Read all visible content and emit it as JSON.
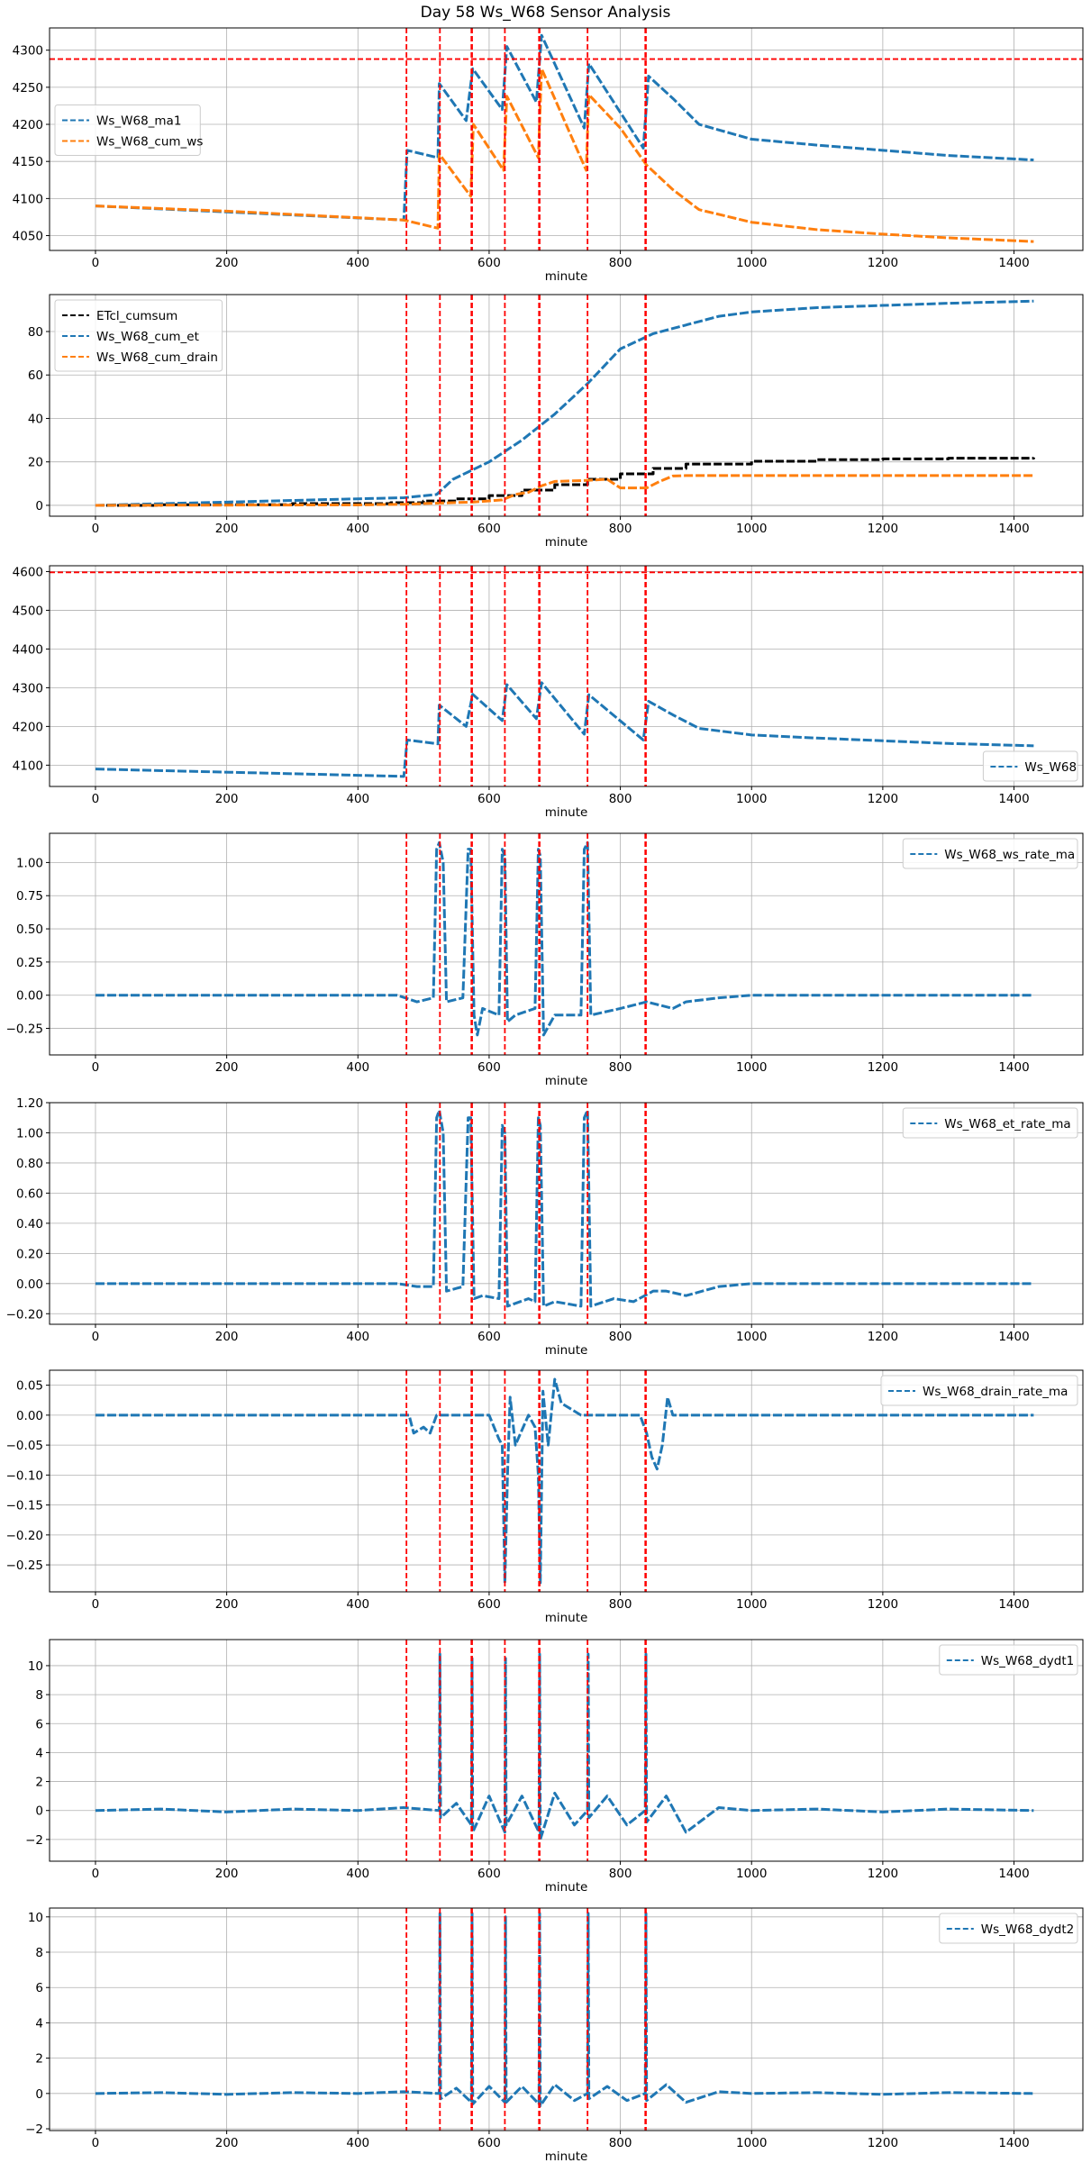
{
  "figure": {
    "title": "Day 58 Ws_W68 Sensor Analysis"
  },
  "colors": {
    "blue": "#1f77b4",
    "orange": "#ff7f0e",
    "black": "#000000",
    "red": "#ff0000",
    "grid": "#b0b0b0"
  },
  "chart_data": [
    {
      "type": "line",
      "xlabel": "minute",
      "xlim": [
        -70,
        1505
      ],
      "xticks": [
        0,
        200,
        400,
        600,
        800,
        1000,
        1200,
        1400
      ],
      "ylim": [
        4030,
        4330
      ],
      "yticks": [
        4050,
        4100,
        4150,
        4200,
        4250,
        4300
      ],
      "legend": "center-left",
      "hlines": [
        4288
      ],
      "vlines": [
        474,
        525,
        573,
        574,
        624,
        676,
        677,
        750,
        838,
        839
      ],
      "series": [
        {
          "name": "Ws_W68_ma1",
          "color": "blue",
          "x": [
            0,
            470,
            475,
            522,
            524,
            565,
            575,
            620,
            627,
            672,
            680,
            745,
            752,
            835,
            843,
            880,
            920,
            1000,
            1100,
            1200,
            1300,
            1430
          ],
          "y": [
            4090,
            4071,
            4165,
            4155,
            4255,
            4205,
            4275,
            4220,
            4305,
            4230,
            4320,
            4195,
            4282,
            4168,
            4265,
            4235,
            4200,
            4180,
            4172,
            4165,
            4158,
            4152
          ]
        },
        {
          "name": "Ws_W68_cum_ws",
          "color": "orange",
          "x": [
            0,
            200,
            470,
            522,
            524,
            572,
            576,
            622,
            627,
            675,
            680,
            748,
            752,
            800,
            840,
            880,
            920,
            1000,
            1100,
            1200,
            1300,
            1430
          ],
          "y": [
            4090,
            4083,
            4071,
            4060,
            4160,
            4103,
            4200,
            4138,
            4238,
            4155,
            4275,
            4138,
            4240,
            4195,
            4145,
            4112,
            4085,
            4068,
            4058,
            4052,
            4047,
            4042
          ]
        }
      ]
    },
    {
      "type": "line",
      "xlabel": "minute",
      "xlim": [
        -70,
        1505
      ],
      "xticks": [
        0,
        200,
        400,
        600,
        800,
        1000,
        1200,
        1400
      ],
      "ylim": [
        -5,
        97
      ],
      "yticks": [
        0,
        20,
        40,
        60,
        80
      ],
      "legend": "top-left",
      "vlines": [
        474,
        525,
        573,
        574,
        624,
        676,
        677,
        750,
        838,
        839
      ],
      "series": [
        {
          "name": "ETcl_cumsum",
          "color": "black",
          "step": true,
          "x": [
            0,
            100,
            300,
            450,
            500,
            550,
            600,
            650,
            700,
            750,
            800,
            850,
            900,
            1000,
            1100,
            1200,
            1300,
            1430
          ],
          "y": [
            0,
            0.3,
            0.8,
            1.2,
            2,
            3,
            4.5,
            7,
            9.5,
            12,
            14.5,
            17,
            19,
            20.3,
            21,
            21.4,
            21.7,
            22
          ]
        },
        {
          "name": "Ws_W68_cum_et",
          "color": "blue",
          "x": [
            0,
            200,
            400,
            470,
            520,
            545,
            600,
            650,
            700,
            750,
            800,
            850,
            900,
            950,
            1000,
            1100,
            1200,
            1300,
            1430
          ],
          "y": [
            0,
            1.5,
            3,
            3.5,
            5,
            12,
            20,
            30,
            42,
            56,
            72,
            79,
            83,
            87,
            89,
            91,
            92,
            93,
            94
          ]
        },
        {
          "name": "Ws_W68_cum_drain",
          "color": "orange",
          "x": [
            0,
            400,
            470,
            520,
            575,
            620,
            640,
            660,
            680,
            700,
            750,
            780,
            800,
            840,
            860,
            880,
            900,
            1000,
            1200,
            1430
          ],
          "y": [
            0,
            0.2,
            0.5,
            1,
            1.5,
            2.5,
            5,
            6,
            9,
            11,
            11.5,
            12,
            8,
            8,
            11,
            13.5,
            13.7,
            13.7,
            13.7,
            13.7
          ]
        }
      ]
    },
    {
      "type": "line",
      "xlabel": "minute",
      "xlim": [
        -70,
        1505
      ],
      "xticks": [
        0,
        200,
        400,
        600,
        800,
        1000,
        1200,
        1400
      ],
      "ylim": [
        4045,
        4615
      ],
      "yticks": [
        4100,
        4200,
        4300,
        4400,
        4500,
        4600
      ],
      "legend": "bottom-right",
      "hlines": [
        4598
      ],
      "vlines": [
        474,
        525,
        573,
        574,
        624,
        676,
        677,
        750,
        838,
        839
      ],
      "series": [
        {
          "name": "Ws_W68",
          "color": "blue",
          "x": [
            0,
            470,
            475,
            522,
            524,
            565,
            575,
            620,
            627,
            672,
            680,
            745,
            752,
            835,
            843,
            880,
            920,
            1000,
            1100,
            1200,
            1300,
            1430
          ],
          "y": [
            4090,
            4071,
            4165,
            4155,
            4255,
            4200,
            4283,
            4215,
            4308,
            4220,
            4313,
            4180,
            4282,
            4165,
            4265,
            4230,
            4195,
            4178,
            4170,
            4163,
            4156,
            4150
          ]
        }
      ]
    },
    {
      "type": "line",
      "xlabel": "minute",
      "xlim": [
        -70,
        1505
      ],
      "xticks": [
        0,
        200,
        400,
        600,
        800,
        1000,
        1200,
        1400
      ],
      "ylim": [
        -0.45,
        1.22
      ],
      "yticks": [
        -0.25,
        0.0,
        0.25,
        0.5,
        0.75,
        1.0
      ],
      "legend": "top-right",
      "vlines": [
        474,
        525,
        573,
        574,
        624,
        676,
        677,
        750,
        838,
        839
      ],
      "series": [
        {
          "name": "Ws_W68_ws_rate_ma",
          "color": "blue",
          "x": [
            0,
            460,
            490,
            515,
            520,
            524,
            530,
            535,
            560,
            568,
            572,
            577,
            582,
            590,
            615,
            620,
            624,
            628,
            640,
            670,
            675,
            678,
            683,
            700,
            740,
            745,
            750,
            755,
            800,
            840,
            880,
            900,
            950,
            1000,
            1430
          ],
          "y": [
            0,
            0,
            -0.05,
            -0.02,
            1.1,
            1.15,
            1.0,
            -0.05,
            -0.02,
            1.1,
            1.1,
            -0.15,
            -0.3,
            -0.1,
            -0.15,
            1.1,
            1.05,
            -0.2,
            -0.15,
            -0.1,
            1.1,
            1.05,
            -0.3,
            -0.15,
            -0.15,
            1.1,
            1.15,
            -0.15,
            -0.1,
            -0.05,
            -0.1,
            -0.05,
            -0.02,
            0,
            0
          ]
        }
      ]
    },
    {
      "type": "line",
      "xlabel": "minute",
      "xlim": [
        -70,
        1505
      ],
      "xticks": [
        0,
        200,
        400,
        600,
        800,
        1000,
        1200,
        1400
      ],
      "ylim": [
        -0.27,
        1.2
      ],
      "yticks": [
        -0.2,
        0.0,
        0.2,
        0.4,
        0.6,
        0.8,
        1.0,
        1.2
      ],
      "legend": "top-right",
      "vlines": [
        474,
        525,
        573,
        574,
        624,
        676,
        677,
        750,
        838,
        839
      ],
      "series": [
        {
          "name": "Ws_W68_et_rate_ma",
          "color": "blue",
          "x": [
            0,
            460,
            490,
            515,
            520,
            524,
            530,
            535,
            560,
            568,
            572,
            577,
            590,
            615,
            620,
            624,
            628,
            660,
            670,
            675,
            678,
            683,
            700,
            740,
            745,
            750,
            755,
            790,
            820,
            850,
            870,
            900,
            950,
            1000,
            1430
          ],
          "y": [
            0,
            0,
            -0.02,
            -0.02,
            1.1,
            1.15,
            1.0,
            -0.05,
            -0.02,
            1.1,
            1.1,
            -0.1,
            -0.08,
            -0.1,
            1.05,
            1.0,
            -0.15,
            -0.1,
            -0.12,
            1.1,
            1.05,
            -0.15,
            -0.12,
            -0.15,
            1.1,
            1.15,
            -0.15,
            -0.1,
            -0.12,
            -0.05,
            -0.05,
            -0.08,
            -0.02,
            0,
            0
          ]
        }
      ]
    },
    {
      "type": "line",
      "xlabel": "minute",
      "xlim": [
        -70,
        1505
      ],
      "xticks": [
        0,
        200,
        400,
        600,
        800,
        1000,
        1200,
        1400
      ],
      "ylim": [
        -0.295,
        0.075
      ],
      "yticks": [
        -0.25,
        -0.2,
        -0.15,
        -0.1,
        -0.05,
        0.0,
        0.05
      ],
      "legend": "top-right",
      "vlines": [
        474,
        525,
        573,
        574,
        624,
        676,
        677,
        750,
        838,
        839
      ],
      "series": [
        {
          "name": "Ws_W68_drain_rate_ma",
          "color": "blue",
          "x": [
            0,
            470,
            478,
            485,
            500,
            510,
            520,
            540,
            560,
            580,
            590,
            600,
            615,
            620,
            624,
            628,
            632,
            640,
            660,
            670,
            675,
            678,
            682,
            690,
            700,
            710,
            740,
            800,
            830,
            840,
            848,
            856,
            864,
            872,
            880,
            900,
            1000,
            1430
          ],
          "y": [
            0,
            0,
            0,
            -0.03,
            -0.02,
            -0.03,
            0,
            0,
            0,
            0,
            0,
            0,
            -0.04,
            -0.05,
            -0.28,
            -0.1,
            0.03,
            -0.05,
            0,
            -0.02,
            -0.1,
            -0.28,
            0.04,
            -0.05,
            0.06,
            0.02,
            0,
            0,
            0,
            -0.03,
            -0.07,
            -0.09,
            -0.05,
            0.03,
            0,
            0,
            0,
            0
          ]
        }
      ]
    },
    {
      "type": "line",
      "xlabel": "minute",
      "xlim": [
        -70,
        1505
      ],
      "xticks": [
        0,
        200,
        400,
        600,
        800,
        1000,
        1200,
        1400
      ],
      "ylim": [
        -3.5,
        11.8
      ],
      "yticks": [
        -2,
        0,
        2,
        4,
        6,
        8,
        10
      ],
      "legend": "top-right",
      "vlines": [
        474,
        525,
        573,
        574,
        624,
        676,
        677,
        750,
        838,
        839
      ],
      "series": [
        {
          "name": "Ws_W68_dydt1",
          "color": "blue",
          "x": [
            0,
            100,
            200,
            300,
            400,
            470,
            524,
            525,
            526,
            550,
            573,
            574,
            575,
            600,
            624,
            625,
            626,
            650,
            676,
            677,
            678,
            700,
            730,
            750,
            751,
            752,
            780,
            810,
            838,
            839,
            840,
            870,
            900,
            950,
            1000,
            1100,
            1200,
            1300,
            1430
          ],
          "y": [
            0,
            0.1,
            -0.1,
            0.1,
            0,
            0.2,
            0,
            10.8,
            -0.5,
            0.5,
            -1.0,
            10.5,
            -1.5,
            1.0,
            -1.5,
            10.5,
            -1.0,
            1.0,
            -1.5,
            10.8,
            -2.0,
            1.2,
            -1.0,
            0,
            10.8,
            -0.5,
            1.0,
            -1.0,
            0,
            10.8,
            -0.8,
            1.0,
            -1.5,
            0.2,
            0,
            0.1,
            -0.1,
            0.1,
            0
          ]
        }
      ]
    },
    {
      "type": "line",
      "xlabel": "minute",
      "xlim": [
        -70,
        1505
      ],
      "xticks": [
        0,
        200,
        400,
        600,
        800,
        1000,
        1200,
        1400
      ],
      "ylim": [
        -2.1,
        10.5
      ],
      "yticks": [
        -2,
        0,
        2,
        4,
        6,
        8,
        10
      ],
      "legend": "top-right",
      "vlines": [
        474,
        525,
        573,
        574,
        624,
        676,
        677,
        750,
        838,
        839
      ],
      "series": [
        {
          "name": "Ws_W68_dydt2",
          "color": "blue",
          "x": [
            0,
            100,
            200,
            300,
            400,
            470,
            524,
            525,
            526,
            550,
            573,
            574,
            575,
            600,
            624,
            625,
            626,
            650,
            676,
            677,
            678,
            700,
            730,
            750,
            751,
            752,
            780,
            810,
            838,
            839,
            840,
            870,
            900,
            950,
            1000,
            1100,
            1200,
            1300,
            1430
          ],
          "y": [
            0,
            0.05,
            -0.05,
            0.05,
            0,
            0.1,
            0,
            10.2,
            -0.3,
            0.3,
            -0.5,
            10.2,
            -0.6,
            0.4,
            -0.5,
            10.0,
            -0.5,
            0.4,
            -0.6,
            10.2,
            -0.7,
            0.5,
            -0.4,
            0,
            10.2,
            -0.3,
            0.4,
            -0.4,
            0,
            10.2,
            -0.4,
            0.5,
            -0.5,
            0.1,
            0,
            0.05,
            -0.05,
            0.05,
            0
          ]
        }
      ]
    }
  ]
}
